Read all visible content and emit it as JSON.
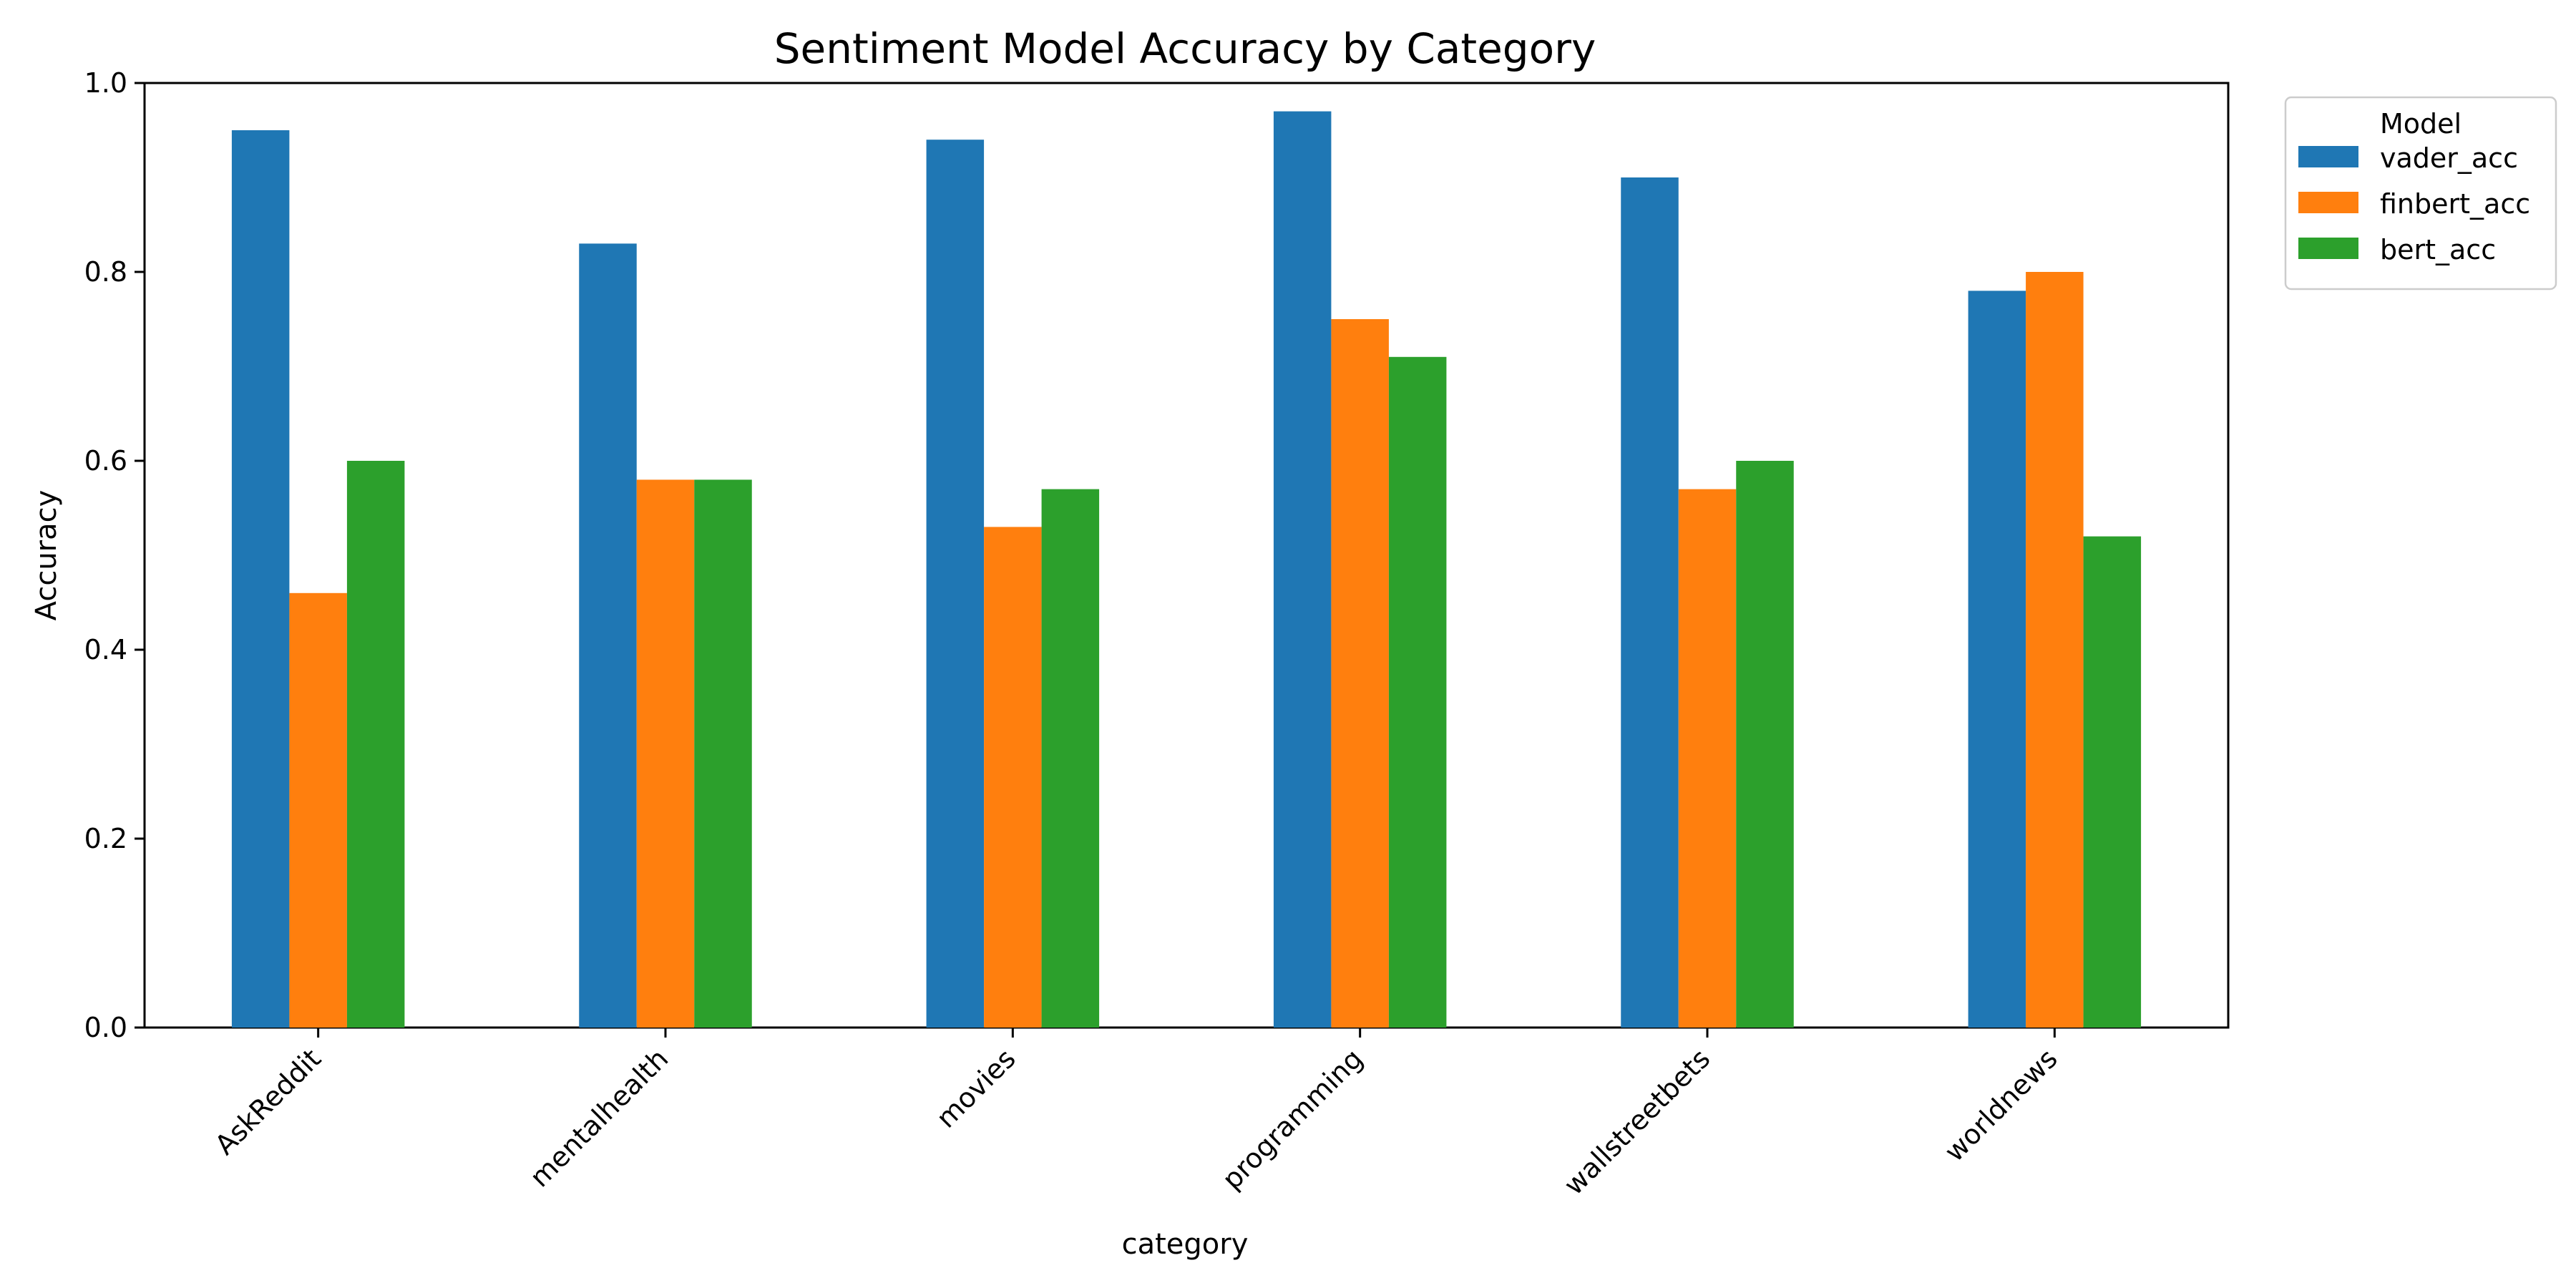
{
  "chart_data": {
    "type": "bar",
    "title": "Sentiment Model Accuracy by Category",
    "xlabel": "category",
    "ylabel": "Accuracy",
    "ylim": [
      0,
      1.0
    ],
    "yticks": [
      "0.0",
      "0.2",
      "0.4",
      "0.6",
      "0.8",
      "1.0"
    ],
    "categories": [
      "AskReddit",
      "mentalhealth",
      "movies",
      "programming",
      "wallstreetbets",
      "worldnews"
    ],
    "series": [
      {
        "name": "vader_acc",
        "color": "#1f77b4",
        "values": [
          0.95,
          0.83,
          0.94,
          0.97,
          0.9,
          0.78
        ]
      },
      {
        "name": "finbert_acc",
        "color": "#ff7f0e",
        "values": [
          0.46,
          0.58,
          0.53,
          0.75,
          0.57,
          0.8
        ]
      },
      {
        "name": "bert_acc",
        "color": "#2ca02c",
        "values": [
          0.6,
          0.58,
          0.57,
          0.71,
          0.6,
          0.52
        ]
      }
    ],
    "legend": {
      "title": "Model",
      "placement": "outside-top-right"
    },
    "grid": false
  }
}
